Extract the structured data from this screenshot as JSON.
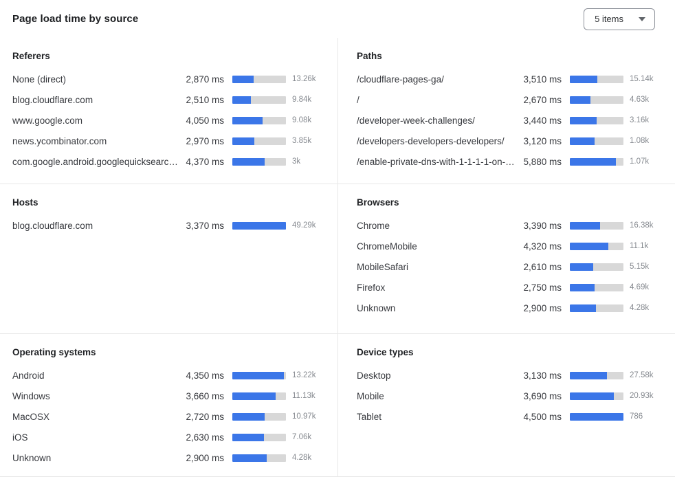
{
  "header": {
    "title": "Page load time by source",
    "items_selector": {
      "label": "5 items"
    }
  },
  "colors": {
    "bar_fill": "#3B76E8",
    "bar_track": "#D8D8D8"
  },
  "chart_data": {
    "type": "bar",
    "unit": "ms",
    "title": "Page load time by source",
    "legend_position": "none",
    "grid": false,
    "sections": [
      {
        "title": "Referers",
        "bar_max_ms": 7235,
        "rows": [
          {
            "label": "None (direct)",
            "ms": 2870,
            "ms_label": "2,870 ms",
            "count": "13.26k"
          },
          {
            "label": "blog.cloudflare.com",
            "ms": 2510,
            "ms_label": "2,510 ms",
            "count": "9.84k"
          },
          {
            "label": "www.google.com",
            "ms": 4050,
            "ms_label": "4,050 ms",
            "count": "9.08k"
          },
          {
            "label": "news.ycombinator.com",
            "ms": 2970,
            "ms_label": "2,970 ms",
            "count": "3.85k"
          },
          {
            "label": "com.google.android.googlequicksearc…",
            "ms": 4370,
            "ms_label": "4,370 ms",
            "count": "3k"
          }
        ]
      },
      {
        "title": "Paths",
        "bar_max_ms": 6840,
        "rows": [
          {
            "label": "/cloudflare-pages-ga/",
            "ms": 3510,
            "ms_label": "3,510 ms",
            "count": "15.14k"
          },
          {
            "label": "/",
            "ms": 2670,
            "ms_label": "2,670 ms",
            "count": "4.63k"
          },
          {
            "label": "/developer-week-challenges/",
            "ms": 3440,
            "ms_label": "3,440 ms",
            "count": "3.16k"
          },
          {
            "label": "/developers-developers-developers/",
            "ms": 3120,
            "ms_label": "3,120 ms",
            "count": "1.08k"
          },
          {
            "label": "/enable-private-dns-with-1-1-1-1-on-…",
            "ms": 5880,
            "ms_label": "5,880 ms",
            "count": "1.07k"
          }
        ]
      },
      {
        "title": "Hosts",
        "bar_max_ms": 3370,
        "rows": [
          {
            "label": "blog.cloudflare.com",
            "ms": 3370,
            "ms_label": "3,370 ms",
            "count": "49.29k"
          }
        ]
      },
      {
        "title": "Browsers",
        "bar_max_ms": 6010,
        "rows": [
          {
            "label": "Chrome",
            "ms": 3390,
            "ms_label": "3,390 ms",
            "count": "16.38k"
          },
          {
            "label": "ChromeMobile",
            "ms": 4320,
            "ms_label": "4,320 ms",
            "count": "11.1k"
          },
          {
            "label": "MobileSafari",
            "ms": 2610,
            "ms_label": "2,610 ms",
            "count": "5.15k"
          },
          {
            "label": "Firefox",
            "ms": 2750,
            "ms_label": "2,750 ms",
            "count": "4.69k"
          },
          {
            "label": "Unknown",
            "ms": 2900,
            "ms_label": "2,900 ms",
            "count": "4.28k"
          }
        ]
      },
      {
        "title": "Operating systems",
        "bar_max_ms": 4500,
        "rows": [
          {
            "label": "Android",
            "ms": 4350,
            "ms_label": "4,350 ms",
            "count": "13.22k"
          },
          {
            "label": "Windows",
            "ms": 3660,
            "ms_label": "3,660 ms",
            "count": "11.13k"
          },
          {
            "label": "MacOSX",
            "ms": 2720,
            "ms_label": "2,720 ms",
            "count": "10.97k"
          },
          {
            "label": "iOS",
            "ms": 2630,
            "ms_label": "2,630 ms",
            "count": "7.06k"
          },
          {
            "label": "Unknown",
            "ms": 2900,
            "ms_label": "2,900 ms",
            "count": "4.28k"
          }
        ]
      },
      {
        "title": "Device types",
        "bar_max_ms": 4500,
        "rows": [
          {
            "label": "Desktop",
            "ms": 3130,
            "ms_label": "3,130 ms",
            "count": "27.58k"
          },
          {
            "label": "Mobile",
            "ms": 3690,
            "ms_label": "3,690 ms",
            "count": "20.93k"
          },
          {
            "label": "Tablet",
            "ms": 4500,
            "ms_label": "4,500 ms",
            "count": "786"
          }
        ]
      }
    ]
  }
}
